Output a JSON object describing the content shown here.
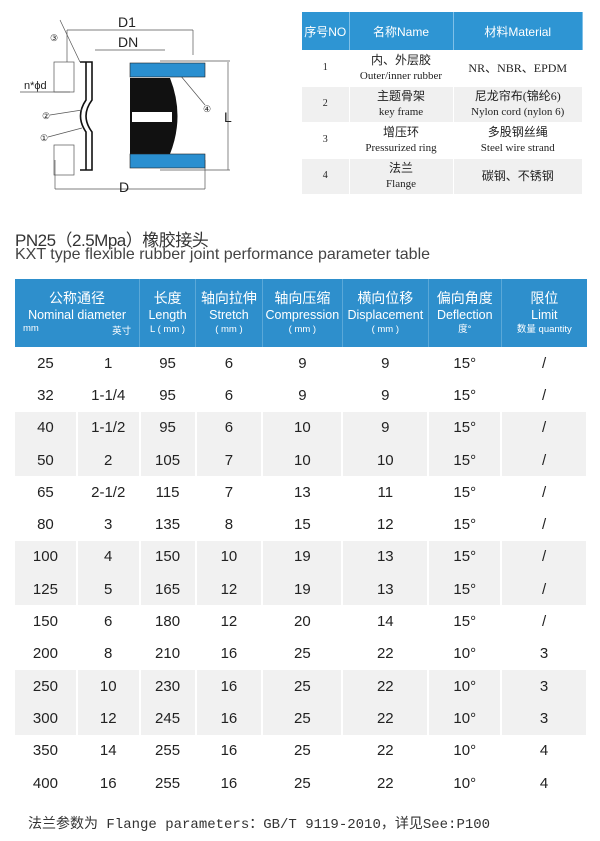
{
  "diagram": {
    "labels": {
      "d1": "D1",
      "dn": "DN",
      "d": "D",
      "l": "L",
      "bolt": "n*ϕd",
      "c1": "①",
      "c2": "②",
      "c3": "③",
      "c4": "④"
    },
    "colors": {
      "flange": "#2a8fd0",
      "rubber": "#111111"
    }
  },
  "materials": {
    "headers": [
      "序号NO",
      "名称Name",
      "材料Material"
    ],
    "rows": [
      {
        "no": "1",
        "name_cn": "内、外层胶",
        "name_en": "Outer/inner rubber",
        "mat_cn": "NR、NBR、EPDM",
        "mat_en": ""
      },
      {
        "no": "2",
        "name_cn": "主题骨架",
        "name_en": "key frame",
        "mat_cn": "尼龙帘布(锦纶6)",
        "mat_en": "Nylon cord (nylon 6)"
      },
      {
        "no": "3",
        "name_cn": "增压环",
        "name_en": "Pressurized ring",
        "mat_cn": "多股钢丝绳",
        "mat_en": "Steel wire strand"
      },
      {
        "no": "4",
        "name_cn": "法兰",
        "name_en": "Flange",
        "mat_cn": "碳钢、不锈钢",
        "mat_en": ""
      }
    ]
  },
  "title_cn": "PN25（2.5Mpa）橡胶接头",
  "title_en": "KXT type flexible rubber joint performance parameter table",
  "table": {
    "headers": [
      {
        "cn": "公称通径",
        "en": "Nominal diameter",
        "unit_a": "mm",
        "unit_b": "英寸"
      },
      {
        "cn": "长度",
        "en": "Length",
        "unit": "L ( mm )"
      },
      {
        "cn": "轴向拉伸",
        "en": "Stretch",
        "unit": "( mm )"
      },
      {
        "cn": "轴向压缩",
        "en": "Compression",
        "unit": "( mm )"
      },
      {
        "cn": "横向位移",
        "en": "Displacement",
        "unit": "( mm )"
      },
      {
        "cn": "偏向角度",
        "en": "Deflection",
        "unit": "度°"
      },
      {
        "cn": "限位",
        "en": "Limit",
        "unit": "数量 quantity"
      }
    ],
    "rows": [
      [
        "25",
        "1",
        "95",
        "6",
        "9",
        "9",
        "15°",
        "/"
      ],
      [
        "32",
        "1-1/4",
        "95",
        "6",
        "9",
        "9",
        "15°",
        "/"
      ],
      [
        "40",
        "1-1/2",
        "95",
        "6",
        "10",
        "9",
        "15°",
        "/"
      ],
      [
        "50",
        "2",
        "105",
        "7",
        "10",
        "10",
        "15°",
        "/"
      ],
      [
        "65",
        "2-1/2",
        "115",
        "7",
        "13",
        "11",
        "15°",
        "/"
      ],
      [
        "80",
        "3",
        "135",
        "8",
        "15",
        "12",
        "15°",
        "/"
      ],
      [
        "100",
        "4",
        "150",
        "10",
        "19",
        "13",
        "15°",
        "/"
      ],
      [
        "125",
        "5",
        "165",
        "12",
        "19",
        "13",
        "15°",
        "/"
      ],
      [
        "150",
        "6",
        "180",
        "12",
        "20",
        "14",
        "15°",
        "/"
      ],
      [
        "200",
        "8",
        "210",
        "16",
        "25",
        "22",
        "10°",
        "3"
      ],
      [
        "250",
        "10",
        "230",
        "16",
        "25",
        "22",
        "10°",
        "3"
      ],
      [
        "300",
        "12",
        "245",
        "16",
        "25",
        "22",
        "10°",
        "3"
      ],
      [
        "350",
        "14",
        "255",
        "16",
        "25",
        "22",
        "10°",
        "4"
      ],
      [
        "400",
        "16",
        "255",
        "16",
        "25",
        "22",
        "10°",
        "4"
      ]
    ]
  },
  "footer": "法兰参数为 Flange parameters：GB/T 9119-2010，详见See:P100"
}
